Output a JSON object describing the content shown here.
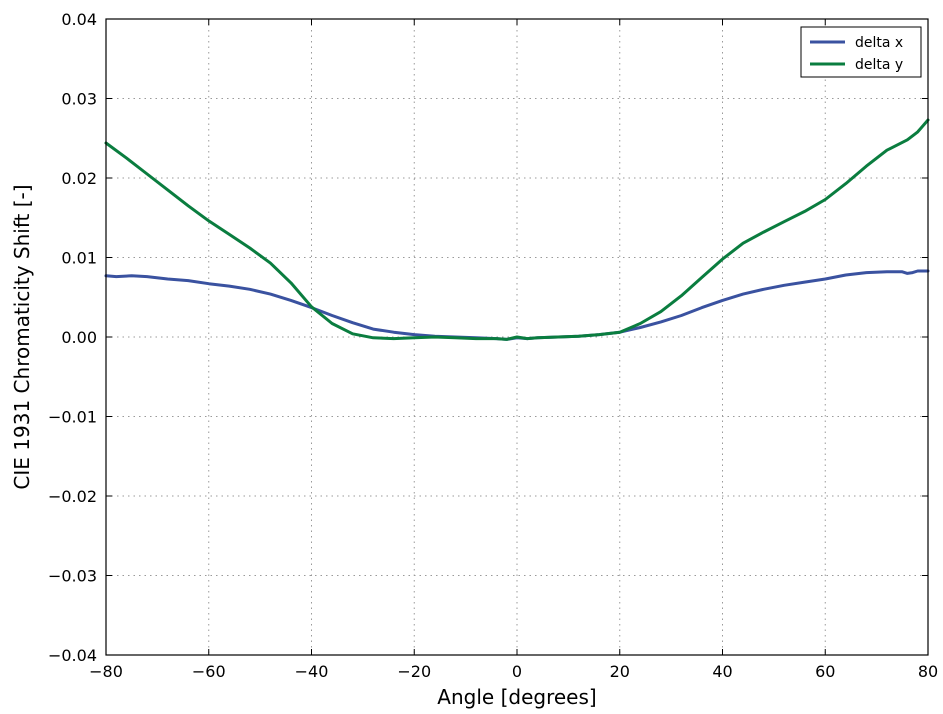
{
  "chart_data": {
    "type": "line",
    "title": "",
    "xlabel": "Angle [degrees]",
    "ylabel": "CIE 1931 Chromaticity Shift  [-]",
    "xlim": [
      -80,
      80
    ],
    "ylim": [
      -0.04,
      0.04
    ],
    "x_ticks": [
      -80,
      -60,
      -40,
      -20,
      0,
      20,
      40,
      60,
      80
    ],
    "x_tick_labels": [
      "−80",
      "−60",
      "−40",
      "−20",
      "0",
      "20",
      "40",
      "60",
      "80"
    ],
    "y_ticks": [
      -0.04,
      -0.03,
      -0.02,
      -0.01,
      0.0,
      0.01,
      0.02,
      0.03,
      0.04
    ],
    "y_tick_labels": [
      "−0.04",
      "−0.03",
      "−0.02",
      "−0.01",
      "0.00",
      "0.01",
      "0.02",
      "0.03",
      "0.04"
    ],
    "grid": true,
    "legend_position": "top-right",
    "series": [
      {
        "name": "delta x",
        "color": "#3a52a0",
        "x": [
          -80,
          -78,
          -75,
          -72,
          -68,
          -64,
          -60,
          -56,
          -52,
          -48,
          -44,
          -40,
          -36,
          -32,
          -28,
          -24,
          -20,
          -16,
          -12,
          -8,
          -4,
          -2,
          0,
          2,
          4,
          8,
          12,
          16,
          20,
          24,
          28,
          32,
          36,
          40,
          44,
          48,
          52,
          56,
          60,
          64,
          68,
          72,
          75,
          76,
          77,
          78,
          80
        ],
        "y": [
          0.0077,
          0.0076,
          0.0077,
          0.0076,
          0.0073,
          0.0071,
          0.0067,
          0.0064,
          0.006,
          0.0054,
          0.0046,
          0.0037,
          0.0027,
          0.0018,
          0.001,
          0.0006,
          0.0003,
          0.0001,
          0.0,
          -0.0001,
          -0.0002,
          -0.0003,
          -0.0001,
          -0.0002,
          -0.0001,
          0.0,
          0.0001,
          0.0003,
          0.0006,
          0.0012,
          0.0019,
          0.0027,
          0.0037,
          0.0046,
          0.0054,
          0.006,
          0.0065,
          0.0069,
          0.0073,
          0.0078,
          0.0081,
          0.0082,
          0.0082,
          0.008,
          0.0081,
          0.0083,
          0.0083
        ]
      },
      {
        "name": "delta y",
        "color": "#0a7d3f",
        "x": [
          -80,
          -76,
          -72,
          -68,
          -64,
          -60,
          -56,
          -52,
          -48,
          -44,
          -40,
          -36,
          -32,
          -28,
          -24,
          -20,
          -16,
          -12,
          -8,
          -4,
          -2,
          0,
          2,
          4,
          8,
          12,
          16,
          20,
          24,
          28,
          32,
          36,
          40,
          44,
          48,
          52,
          56,
          60,
          64,
          68,
          72,
          76,
          78,
          80
        ],
        "y": [
          0.0244,
          0.0225,
          0.0205,
          0.0185,
          0.0165,
          0.0146,
          0.0129,
          0.0112,
          0.0093,
          0.0068,
          0.0038,
          0.0017,
          0.0004,
          -0.0001,
          -0.0002,
          -0.0001,
          0.0,
          -0.0001,
          -0.0002,
          -0.0002,
          -0.0003,
          0.0,
          -0.0002,
          -0.0001,
          0.0,
          0.0001,
          0.0003,
          0.0006,
          0.0017,
          0.0032,
          0.0052,
          0.0075,
          0.0098,
          0.0118,
          0.0132,
          0.0145,
          0.0158,
          0.0173,
          0.0193,
          0.0215,
          0.0235,
          0.0248,
          0.0258,
          0.0273
        ]
      }
    ]
  }
}
